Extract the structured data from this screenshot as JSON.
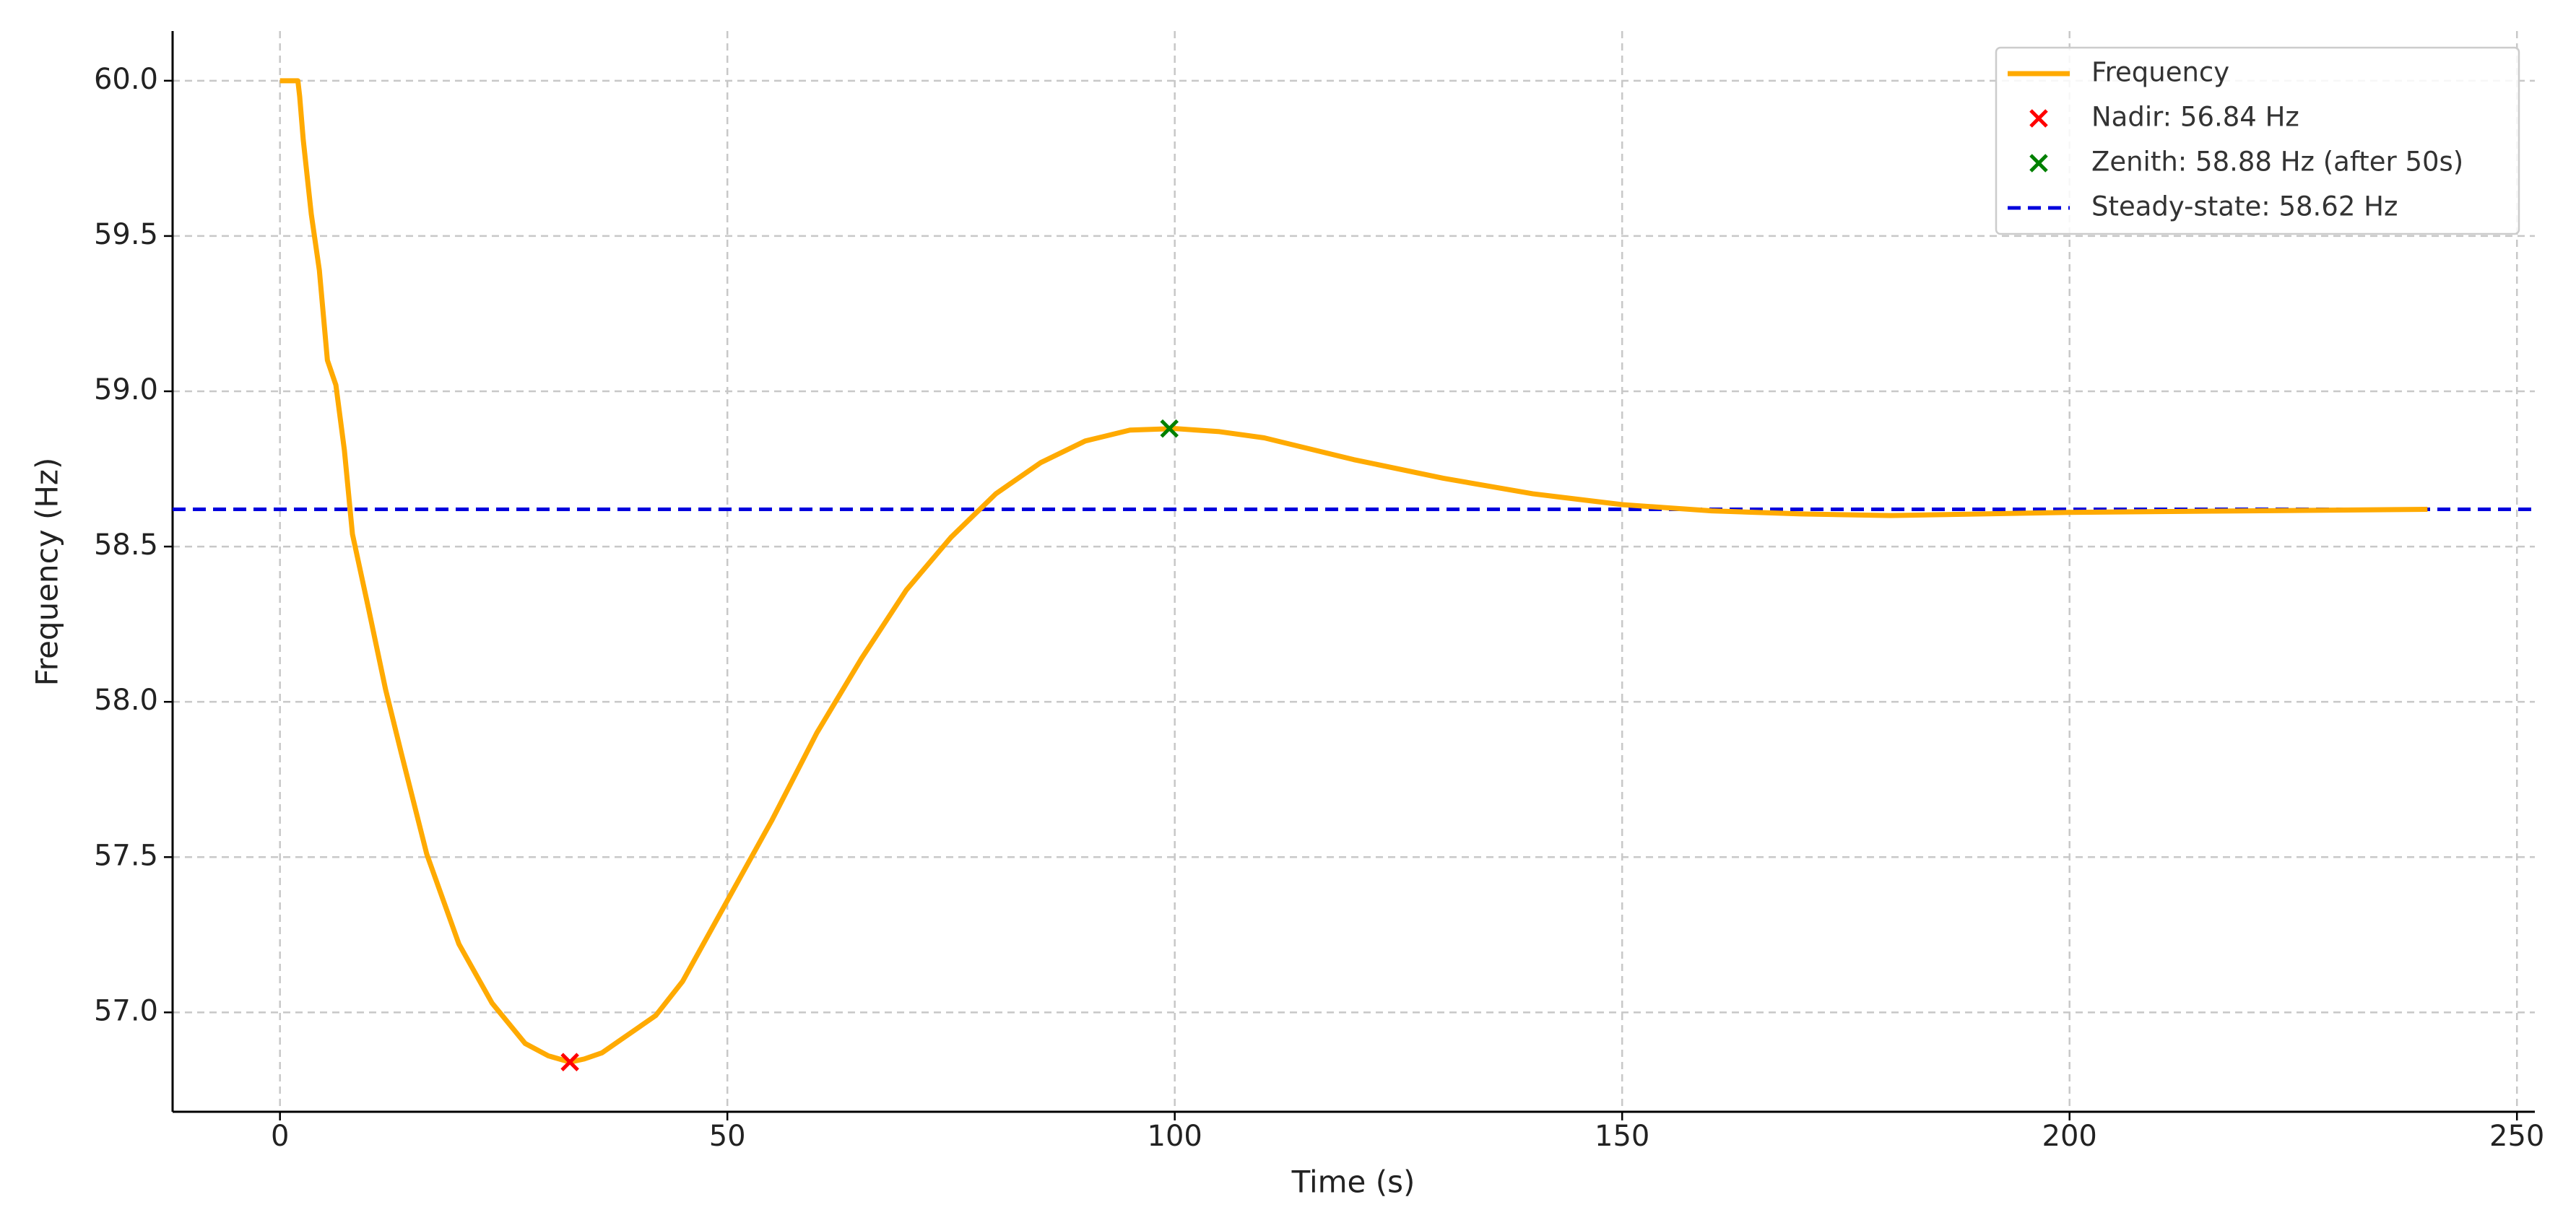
{
  "chart_data": {
    "type": "line",
    "xlabel": "Time (s)",
    "ylabel": "Frequency (Hz)",
    "xlim": [
      -12,
      252
    ],
    "ylim": [
      56.68,
      60.16
    ],
    "xticks": [
      0,
      50,
      100,
      150,
      200,
      250
    ],
    "yticks": [
      {
        "value": 57,
        "label": "57.0"
      },
      57.5,
      {
        "value": 58,
        "label": "58.0"
      },
      58.5,
      {
        "value": 59,
        "label": "59.0"
      },
      59.5,
      {
        "value": 60,
        "label": "60.0"
      }
    ],
    "grid": true,
    "legend": "upper right",
    "x": [
      0,
      2,
      2.2,
      2.6,
      3.5,
      4.4,
      5.3,
      6.25,
      7.2,
      8.1,
      9.9,
      11.8,
      13.6,
      16.4,
      20,
      23.7,
      27.4,
      30,
      32.4,
      34,
      36,
      38,
      40,
      42,
      45,
      50,
      55,
      60,
      65,
      70,
      75,
      80,
      85,
      90,
      95,
      100,
      105,
      110,
      120,
      130,
      140,
      150,
      160,
      170,
      180,
      200,
      220,
      240
    ],
    "series": [
      {
        "name": "Frequency",
        "color": "#ffaa00",
        "values": [
          60,
          60,
          59.95,
          59.81,
          59.57,
          59.39,
          59.1,
          59.02,
          58.81,
          58.54,
          58.3,
          58.04,
          57.83,
          57.51,
          57.22,
          57.03,
          56.9,
          56.86,
          56.84,
          56.85,
          56.87,
          56.91,
          56.95,
          56.99,
          57.1,
          57.36,
          57.62,
          57.9,
          58.14,
          58.36,
          58.53,
          58.67,
          58.77,
          58.84,
          58.875,
          58.88,
          58.87,
          58.85,
          58.78,
          58.72,
          58.67,
          58.635,
          58.615,
          58.605,
          58.6,
          58.61,
          58.615,
          58.62
        ]
      }
    ],
    "markers": [
      {
        "name": "Nadir: 56.84 Hz",
        "color": "#ff0000",
        "x": 32.4,
        "y": 56.84
      },
      {
        "name": "Zenith: 58.88 Hz (after 50s)",
        "color": "#008000",
        "x": 99.4,
        "y": 58.88
      }
    ],
    "hlines": [
      {
        "name": "Steady-state: 58.62 Hz",
        "color": "#0000dd",
        "y": 58.62
      }
    ]
  }
}
